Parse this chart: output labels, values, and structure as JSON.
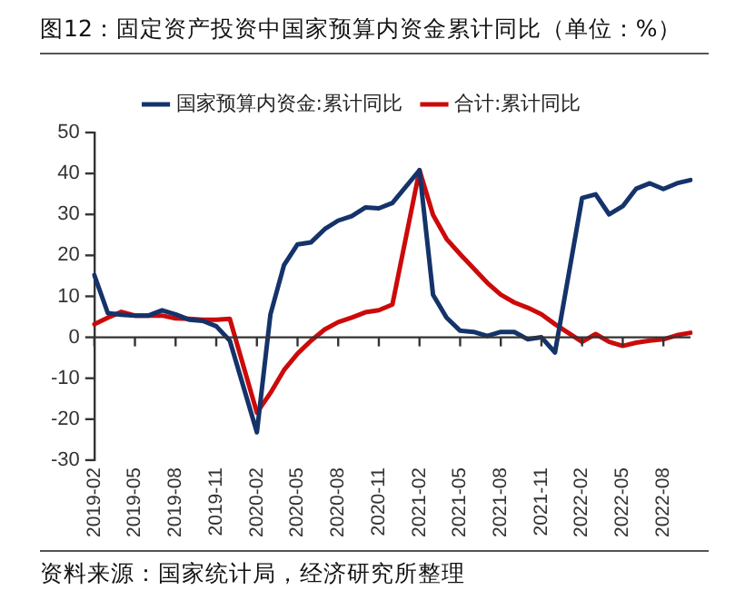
{
  "chart_data": {
    "type": "line",
    "title": "图12：固定资产投资中国家预算内资金累计同比（单位：%）",
    "categories": [
      "2019-02",
      null,
      null,
      "2019-05",
      null,
      null,
      "2019-08",
      null,
      null,
      "2019-11",
      null,
      null,
      "2020-02",
      null,
      null,
      "2020-05",
      null,
      null,
      "2020-08",
      null,
      null,
      "2020-11",
      null,
      null,
      "2021-02",
      null,
      null,
      "2021-05",
      null,
      null,
      "2021-08",
      null,
      null,
      "2021-11",
      null,
      null,
      "2022-02",
      null,
      null,
      "2022-05",
      null,
      null,
      "2022-08",
      null,
      null
    ],
    "series": [
      {
        "name": "国家预算内资金:累计同比",
        "color": "#15336a",
        "values": [
          15.2,
          5.9,
          5.5,
          5.3,
          5.3,
          6.6,
          5.6,
          4.3,
          4,
          2.7,
          -0.8,
          null,
          -23.2,
          5.6,
          17.6,
          22.7,
          23.2,
          26.4,
          28.5,
          29.6,
          31.7,
          31.5,
          32.8,
          null,
          40.8,
          10.4,
          4.8,
          1.6,
          1.3,
          0.3,
          1.3,
          1.3,
          -0.5,
          0,
          -3.7,
          null,
          34,
          34.9,
          30,
          32,
          36.3,
          37.6,
          36.2,
          37.6,
          38.4
        ]
      },
      {
        "name": "合计:累计同比",
        "color": "#cc0a0a",
        "values": [
          3.2,
          4.8,
          6.2,
          5.3,
          5.3,
          5.3,
          4.6,
          4.5,
          4.3,
          4.3,
          4.5,
          null,
          -18.4,
          -13.6,
          -8,
          -4,
          -0.8,
          1.9,
          3.7,
          4.8,
          6.1,
          6.6,
          8,
          null,
          40.8,
          29.9,
          24,
          20.3,
          16.8,
          13.3,
          10.4,
          8.5,
          7.2,
          5.6,
          3.2,
          null,
          -1.1,
          0.8,
          -1.1,
          -2.1,
          -1.3,
          -0.8,
          -0.5,
          0.5,
          1.1
        ]
      }
    ],
    "ylim": [
      -30,
      50
    ],
    "yticks": [
      -30,
      -20,
      -10,
      0,
      10,
      20,
      30,
      40,
      50
    ],
    "grid": false,
    "ref_lines": [
      {
        "axis": "y",
        "value": 0,
        "color": "#333333"
      }
    ],
    "legend": "top",
    "marker": "none",
    "annotations": [
      "资料来源：国家统计局，经济研究所整理"
    ]
  }
}
